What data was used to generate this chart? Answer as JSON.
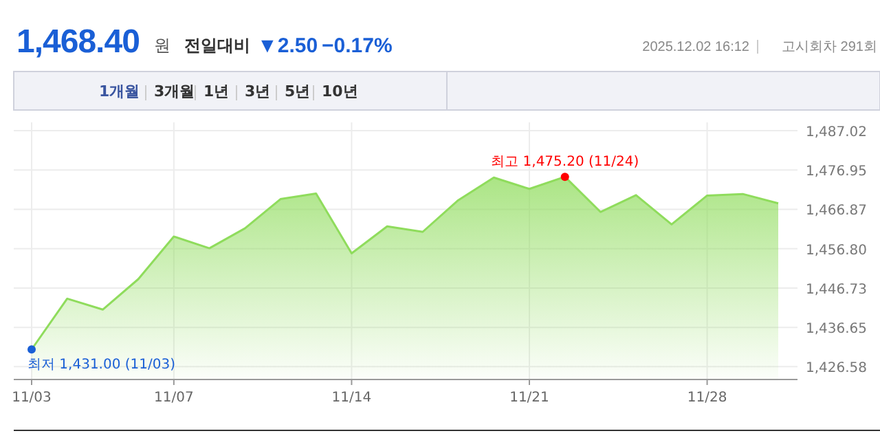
{
  "chart_data": {
    "type": "area",
    "title": "1,468.40",
    "annotations": [
      "원",
      "전일대비",
      "▼2.50",
      "−0.17%",
      "2025.12.02 16:12",
      "고시회차 291회",
      "1개월",
      "3개월",
      "1년",
      "3년",
      "5년",
      "10년",
      {
        "text": "최저 1,431.00 (11/03)",
        "x": "11/03",
        "y": 1431.0
      },
      {
        "text": "최고 1,475.20 (11/24)",
        "y": 1475.2
      }
    ],
    "categories": [
      "11/03",
      null,
      null,
      null,
      "11/07",
      null,
      null,
      null,
      null,
      "11/14",
      null,
      null,
      null,
      null,
      "11/21",
      null,
      null,
      null,
      null,
      "11/28",
      null,
      null
    ],
    "series": [
      {
        "color": "#8fdc5c",
        "values": [
          1431.0,
          1444.0,
          1441.2,
          1449.0,
          1459.9,
          1456.9,
          1462.0,
          1469.5,
          1470.9,
          1455.6,
          1462.5,
          1461.1,
          1469.2,
          1475.0,
          1472.1,
          1475.2,
          1466.2,
          1470.5,
          1463.0,
          1470.4,
          1470.8,
          1468.4
        ]
      }
    ],
    "ylim": [
      1423.3,
      1487.02
    ],
    "yticks": [
      {
        "value": 1426.58,
        "label": "1,426.58"
      },
      {
        "value": 1436.65,
        "label": "1,436.65"
      },
      {
        "value": 1446.73,
        "label": "1,446.73"
      },
      {
        "value": 1456.8,
        "label": "1,456.80"
      },
      {
        "value": 1466.87,
        "label": "1,466.87"
      },
      {
        "value": 1476.95,
        "label": "1,476.95"
      },
      {
        "value": 1487.02,
        "label": "1,487.02"
      }
    ],
    "grid": true
  }
}
